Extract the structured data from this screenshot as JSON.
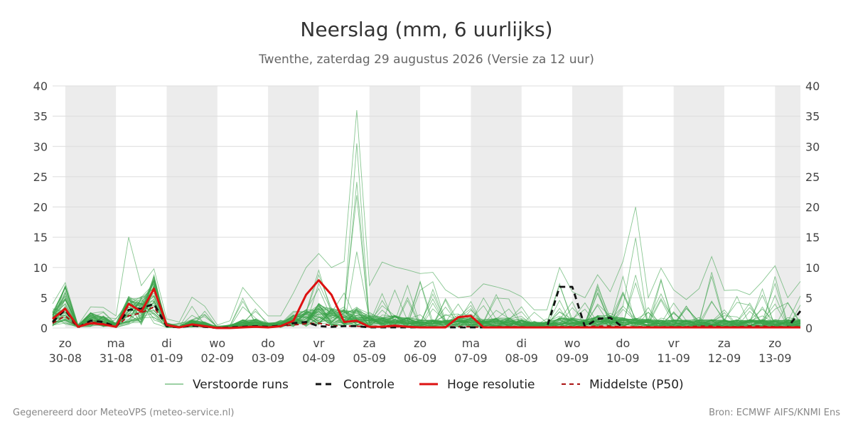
{
  "header": {
    "title": "Neerslag (mm, 6 uurlijks)",
    "subtitle": "Twenthe, zaterdag 29 augustus 2026 (Versie za 12 uur)"
  },
  "footer": {
    "left": "Gegenereerd door MeteoVPS (meteo-service.nl)",
    "right": "Bron: ECMWF AIFS/KNMI Ens"
  },
  "colors": {
    "ensemble": "#3aa14a",
    "control": "#111111",
    "high_res": "#dd1111",
    "median": "#aa1111",
    "weekend_band": "#ececec"
  },
  "chart_data": {
    "type": "line",
    "title": "Neerslag (mm, 6 uurlijks)",
    "subtitle": "Twenthe, zaterdag 29 augustus 2026 (Versie za 12 uur)",
    "x_unit": "days since 30-08 00:00",
    "xlim": [
      -0.25,
      14.5
    ],
    "ylim": [
      0,
      40
    ],
    "y_ticks": [
      0,
      5,
      10,
      15,
      20,
      25,
      30,
      35,
      40
    ],
    "y_axis_both_sides": true,
    "grid": true,
    "x_tick_days": [
      {
        "day": "zo",
        "date": "30-08"
      },
      {
        "day": "ma",
        "date": "31-08"
      },
      {
        "day": "di",
        "date": "01-09"
      },
      {
        "day": "wo",
        "date": "02-09"
      },
      {
        "day": "do",
        "date": "03-09"
      },
      {
        "day": "vr",
        "date": "04-09"
      },
      {
        "day": "za",
        "date": "05-09"
      },
      {
        "day": "zo",
        "date": "06-09"
      },
      {
        "day": "ma",
        "date": "07-09"
      },
      {
        "day": "di",
        "date": "08-09"
      },
      {
        "day": "wo",
        "date": "09-09"
      },
      {
        "day": "do",
        "date": "10-09"
      },
      {
        "day": "vr",
        "date": "11-09"
      },
      {
        "day": "za",
        "date": "12-09"
      },
      {
        "day": "zo",
        "date": "13-09"
      }
    ],
    "shaded_bands": [
      [
        0,
        1
      ],
      [
        2,
        3
      ],
      [
        4,
        5
      ],
      [
        6,
        7
      ],
      [
        8,
        9
      ],
      [
        10,
        11
      ],
      [
        12,
        13
      ],
      [
        14,
        14.5
      ]
    ],
    "legend_position": "bottom",
    "legend": [
      "Verstoorde runs",
      "Controle",
      "Hoge resolutie",
      "Middelste (P50)"
    ],
    "x": [
      -0.25,
      0,
      0.25,
      0.5,
      0.75,
      1,
      1.25,
      1.5,
      1.75,
      2,
      2.25,
      2.5,
      2.75,
      3,
      3.25,
      3.5,
      3.75,
      4,
      4.25,
      4.5,
      4.75,
      5,
      5.25,
      5.5,
      5.75,
      6,
      6.25,
      6.5,
      6.75,
      7,
      7.25,
      7.5,
      7.75,
      8,
      8.25,
      8.5,
      8.75,
      9,
      9.25,
      9.5,
      9.75,
      10,
      10.25,
      10.5,
      10.75,
      11,
      11.25,
      11.5,
      11.75,
      12,
      12.25,
      12.5,
      12.75,
      13,
      13.25,
      13.5,
      13.75,
      14,
      14.25,
      14.5
    ],
    "series": [
      {
        "name": "Hoge resolutie",
        "style": "solid",
        "color": "#dd1111",
        "values": [
          1.5,
          3.2,
          0.2,
          0.8,
          0.6,
          0.2,
          4.0,
          2.7,
          6.5,
          0.5,
          0.1,
          0.6,
          0.3,
          0.0,
          0.0,
          0.1,
          0.2,
          0.1,
          0.3,
          1.2,
          5.5,
          7.9,
          5.5,
          1.0,
          1.2,
          0.2,
          0.2,
          0.4,
          0.2,
          0.1,
          0.1,
          0.1,
          1.8,
          2.0,
          0.1,
          0.1,
          0.1,
          0.1,
          0.1,
          0.1,
          0.1,
          0.1,
          0.1,
          0.1,
          0.1,
          0.1,
          0.1,
          0.1,
          0.1,
          0.1,
          0.1,
          0.1,
          0.1,
          0.1,
          0.1,
          0.1,
          0.1,
          0.1,
          0.1,
          0.1
        ]
      },
      {
        "name": "Controle",
        "style": "dashed",
        "color": "#111111",
        "values": [
          1.0,
          3.0,
          0.1,
          1.2,
          1.0,
          0.2,
          3.0,
          3.2,
          4.0,
          0.3,
          0.1,
          0.4,
          0.2,
          0.0,
          0.1,
          0.2,
          0.3,
          0.2,
          0.4,
          0.8,
          1.0,
          0.3,
          0.2,
          0.3,
          0.3,
          0.1,
          0.1,
          0.1,
          0.1,
          0.1,
          0.1,
          0.1,
          0.1,
          0.1,
          0.1,
          0.1,
          0.1,
          0.1,
          0.1,
          0.1,
          6.8,
          6.8,
          0.2,
          1.5,
          1.7,
          0.1,
          0.1,
          0.1,
          0.1,
          0.1,
          0.1,
          0.1,
          0.1,
          0.1,
          0.1,
          0.1,
          0.1,
          0.1,
          0.1,
          2.8
        ]
      },
      {
        "name": "Middelste (P50)",
        "style": "dashed",
        "color": "#aa1111",
        "values": [
          0.8,
          2.0,
          0.2,
          1.0,
          0.7,
          0.2,
          2.0,
          2.5,
          3.5,
          0.3,
          0.1,
          0.4,
          0.2,
          0.1,
          0.1,
          0.2,
          0.3,
          0.2,
          0.3,
          0.5,
          0.7,
          0.8,
          0.4,
          0.3,
          0.3,
          0.2,
          0.2,
          0.2,
          0.2,
          0.1,
          0.1,
          0.2,
          0.2,
          0.2,
          0.1,
          0.2,
          0.2,
          0.2,
          0.1,
          0.2,
          0.2,
          0.2,
          0.2,
          0.3,
          0.3,
          0.2,
          0.2,
          0.2,
          0.2,
          0.2,
          0.2,
          0.3,
          0.3,
          0.2,
          0.2,
          0.3,
          0.3,
          0.2,
          0.2,
          0.2
        ]
      }
    ],
    "ensemble": {
      "name": "Verstoorde runs",
      "color": "#3aa14a",
      "member_count": 50,
      "envelope_max": [
        4.0,
        7.5,
        0.5,
        3.5,
        3.4,
        2.0,
        15.0,
        7.0,
        9.8,
        1.5,
        1.0,
        5.1,
        3.6,
        0.5,
        1.2,
        6.7,
        4.2,
        2.0,
        2.0,
        5.8,
        10.0,
        12.3,
        10.0,
        11.0,
        36.0,
        7.0,
        10.9,
        10.1,
        9.6,
        9.0,
        9.2,
        6.3,
        5.0,
        5.3,
        7.3,
        6.8,
        6.2,
        5.2,
        3.0,
        3.0,
        10.0,
        6.0,
        5.0,
        8.8,
        6.0,
        11.0,
        20.0,
        5.0,
        9.9,
        6.3,
        4.7,
        6.5,
        11.8,
        6.2,
        6.3,
        5.5,
        7.7,
        10.3,
        5.0,
        7.7
      ],
      "typical_member": [
        1.5,
        4.0,
        0.3,
        1.5,
        1.2,
        0.5,
        3.0,
        3.0,
        5.0,
        0.5,
        0.2,
        0.8,
        0.6,
        0.1,
        0.3,
        0.8,
        1.0,
        0.5,
        0.6,
        1.2,
        1.8,
        2.5,
        2.0,
        1.8,
        2.0,
        1.2,
        1.0,
        1.2,
        1.0,
        0.8,
        0.8,
        0.8,
        1.0,
        1.0,
        0.8,
        1.0,
        1.0,
        0.8,
        0.6,
        0.6,
        1.0,
        1.0,
        0.8,
        1.2,
        1.2,
        1.0,
        1.0,
        0.8,
        0.8,
        0.8,
        0.8,
        0.8,
        0.8,
        0.8,
        0.8,
        0.8,
        0.8,
        0.8,
        0.8,
        0.8
      ]
    }
  }
}
